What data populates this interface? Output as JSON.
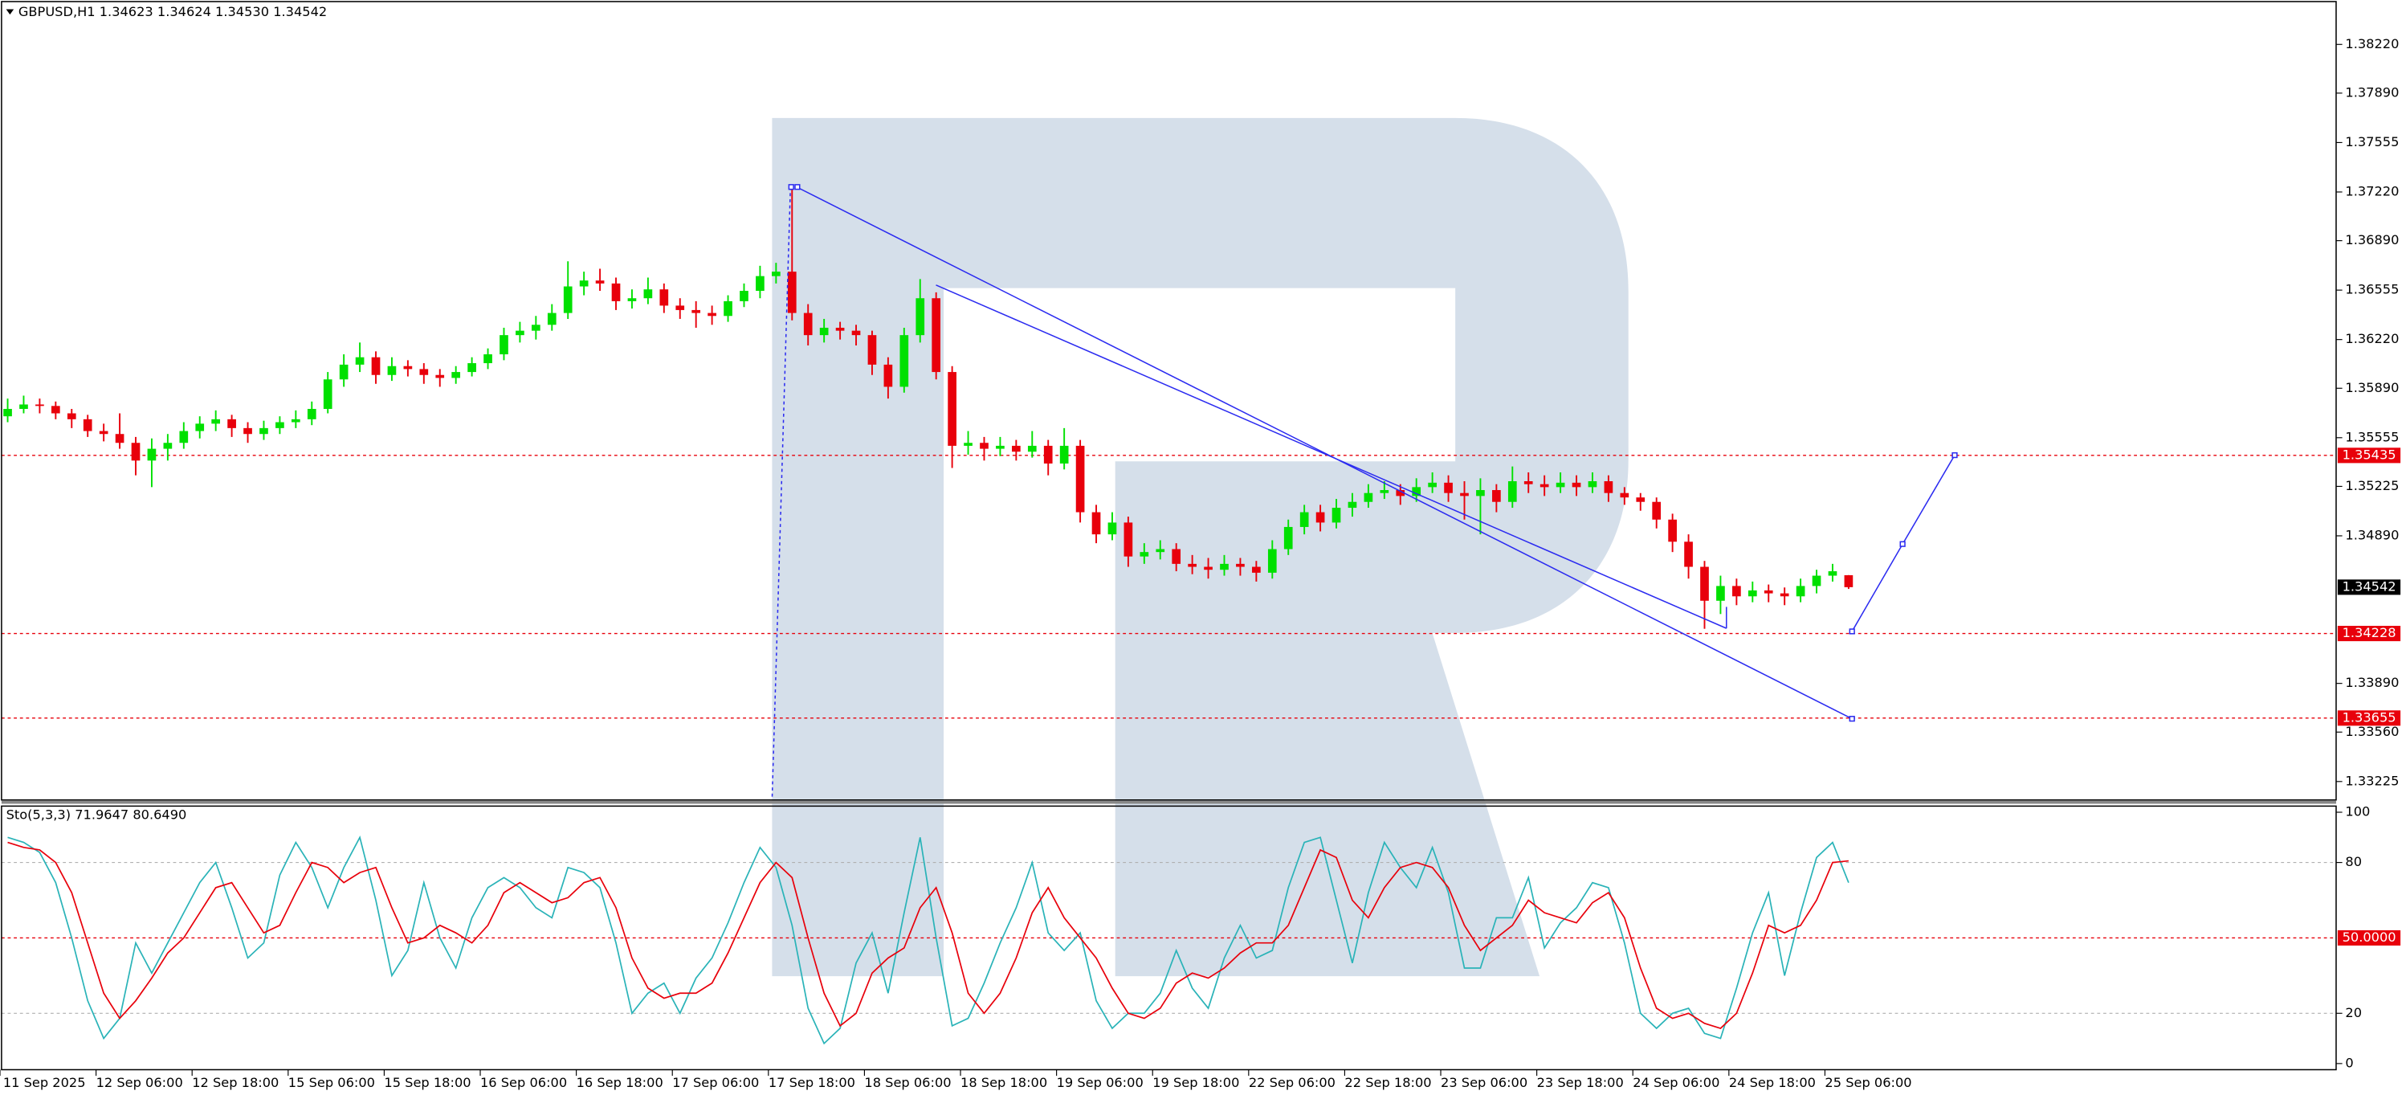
{
  "chart_data": {
    "type": "candlestick",
    "title": "GBPUSD,H1  1.34623 1.34624 1.34530 1.34542",
    "up_color": "#00e000",
    "down_color": "#e8000b",
    "categories": [
      "11 Sep 2025",
      null,
      null,
      null,
      null,
      null,
      "12 Sep 06:00",
      null,
      null,
      null,
      null,
      null,
      "12 Sep 18:00",
      null,
      null,
      null,
      null,
      null,
      "15 Sep 06:00",
      null,
      null,
      null,
      null,
      null,
      "15 Sep 18:00",
      null,
      null,
      null,
      null,
      null,
      "16 Sep 06:00",
      null,
      null,
      null,
      null,
      null,
      "16 Sep 18:00",
      null,
      null,
      null,
      null,
      null,
      "17 Sep 06:00",
      null,
      null,
      null,
      null,
      null,
      "17 Sep 18:00",
      null,
      null,
      null,
      null,
      null,
      "18 Sep 06:00",
      null,
      null,
      null,
      null,
      null,
      "18 Sep 18:00",
      null,
      null,
      null,
      null,
      null,
      "19 Sep 06:00",
      null,
      null,
      null,
      null,
      null,
      "19 Sep 18:00",
      null,
      null,
      null,
      null,
      null,
      "22 Sep 06:00",
      null,
      null,
      null,
      null,
      null,
      "22 Sep 18:00",
      null,
      null,
      null,
      null,
      null,
      "23 Sep 06:00",
      null,
      null,
      null,
      null,
      null,
      "23 Sep 18:00",
      null,
      null,
      null,
      null,
      null,
      "24 Sep 06:00",
      null,
      null,
      null,
      null,
      null,
      "24 Sep 18:00",
      null,
      null,
      null,
      null,
      null,
      "25 Sep 06:00",
      null
    ],
    "candles": [
      [
        1.357,
        1.3582,
        1.3566,
        1.3575
      ],
      [
        1.3575,
        1.3584,
        1.3572,
        1.3578
      ],
      [
        1.3578,
        1.3582,
        1.3572,
        1.3577
      ],
      [
        1.3577,
        1.358,
        1.3568,
        1.3572
      ],
      [
        1.3572,
        1.3575,
        1.3562,
        1.3568
      ],
      [
        1.3568,
        1.3571,
        1.3556,
        1.356
      ],
      [
        1.356,
        1.3565,
        1.3553,
        1.3558
      ],
      [
        1.3558,
        1.3572,
        1.3548,
        1.3552
      ],
      [
        1.3552,
        1.3556,
        1.353,
        1.354
      ],
      [
        1.354,
        1.3555,
        1.3522,
        1.3548
      ],
      [
        1.3548,
        1.3558,
        1.354,
        1.3552
      ],
      [
        1.3552,
        1.3566,
        1.3548,
        1.356
      ],
      [
        1.356,
        1.357,
        1.3555,
        1.3565
      ],
      [
        1.3565,
        1.3574,
        1.356,
        1.3568
      ],
      [
        1.3568,
        1.3571,
        1.3556,
        1.3562
      ],
      [
        1.3562,
        1.3566,
        1.3552,
        1.3558
      ],
      [
        1.3558,
        1.3567,
        1.3554,
        1.3562
      ],
      [
        1.3562,
        1.357,
        1.3558,
        1.3566
      ],
      [
        1.3566,
        1.3574,
        1.3562,
        1.3568
      ],
      [
        1.3568,
        1.358,
        1.3564,
        1.3575
      ],
      [
        1.3575,
        1.36,
        1.3572,
        1.3595
      ],
      [
        1.3595,
        1.3612,
        1.359,
        1.3605
      ],
      [
        1.3605,
        1.362,
        1.36,
        1.361
      ],
      [
        1.361,
        1.3614,
        1.3592,
        1.3598
      ],
      [
        1.3598,
        1.361,
        1.3594,
        1.3604
      ],
      [
        1.3604,
        1.3608,
        1.3597,
        1.3602
      ],
      [
        1.3602,
        1.3606,
        1.3592,
        1.3598
      ],
      [
        1.3598,
        1.3602,
        1.359,
        1.3596
      ],
      [
        1.3596,
        1.3604,
        1.3592,
        1.36
      ],
      [
        1.36,
        1.361,
        1.3597,
        1.3606
      ],
      [
        1.3606,
        1.3616,
        1.3602,
        1.3612
      ],
      [
        1.3612,
        1.363,
        1.3608,
        1.3625
      ],
      [
        1.3625,
        1.3634,
        1.362,
        1.3628
      ],
      [
        1.3628,
        1.3638,
        1.3622,
        1.3632
      ],
      [
        1.3632,
        1.3646,
        1.3628,
        1.364
      ],
      [
        1.364,
        1.3675,
        1.3636,
        1.3658
      ],
      [
        1.3658,
        1.3668,
        1.3652,
        1.3662
      ],
      [
        1.3662,
        1.367,
        1.3655,
        1.366
      ],
      [
        1.366,
        1.3664,
        1.3642,
        1.3648
      ],
      [
        1.3648,
        1.3656,
        1.3643,
        1.365
      ],
      [
        1.365,
        1.3664,
        1.3646,
        1.3656
      ],
      [
        1.3656,
        1.366,
        1.364,
        1.3645
      ],
      [
        1.3645,
        1.365,
        1.3636,
        1.3642
      ],
      [
        1.3642,
        1.3648,
        1.363,
        1.364
      ],
      [
        1.364,
        1.3645,
        1.3632,
        1.3638
      ],
      [
        1.3638,
        1.3652,
        1.3634,
        1.3648
      ],
      [
        1.3648,
        1.366,
        1.3644,
        1.3655
      ],
      [
        1.3655,
        1.3672,
        1.365,
        1.3665
      ],
      [
        1.3665,
        1.3674,
        1.366,
        1.3668
      ],
      [
        1.3668,
        1.3725,
        1.3635,
        1.364
      ],
      [
        1.364,
        1.3646,
        1.3618,
        1.3625
      ],
      [
        1.3625,
        1.3636,
        1.362,
        1.363
      ],
      [
        1.363,
        1.3634,
        1.3622,
        1.3628
      ],
      [
        1.3628,
        1.3632,
        1.3618,
        1.3625
      ],
      [
        1.3625,
        1.3628,
        1.3598,
        1.3605
      ],
      [
        1.3605,
        1.361,
        1.3582,
        1.359
      ],
      [
        1.359,
        1.363,
        1.3586,
        1.3625
      ],
      [
        1.3625,
        1.3663,
        1.362,
        1.365
      ],
      [
        1.365,
        1.3654,
        1.3595,
        1.36
      ],
      [
        1.36,
        1.3604,
        1.3535,
        1.355
      ],
      [
        1.355,
        1.356,
        1.3544,
        1.3552
      ],
      [
        1.3552,
        1.3556,
        1.354,
        1.3548
      ],
      [
        1.3548,
        1.3556,
        1.3543,
        1.355
      ],
      [
        1.355,
        1.3554,
        1.354,
        1.3546
      ],
      [
        1.3546,
        1.356,
        1.3542,
        1.355
      ],
      [
        1.355,
        1.3554,
        1.353,
        1.3538
      ],
      [
        1.3538,
        1.3562,
        1.3534,
        1.355
      ],
      [
        1.355,
        1.3554,
        1.3498,
        1.3505
      ],
      [
        1.3505,
        1.351,
        1.3484,
        1.349
      ],
      [
        1.349,
        1.3505,
        1.3486,
        1.3498
      ],
      [
        1.3498,
        1.3502,
        1.3468,
        1.3475
      ],
      [
        1.3475,
        1.3484,
        1.347,
        1.3478
      ],
      [
        1.3478,
        1.3486,
        1.3473,
        1.348
      ],
      [
        1.348,
        1.3484,
        1.3465,
        1.347
      ],
      [
        1.347,
        1.3476,
        1.3463,
        1.3468
      ],
      [
        1.3468,
        1.3474,
        1.346,
        1.3466
      ],
      [
        1.3466,
        1.3476,
        1.3462,
        1.347
      ],
      [
        1.347,
        1.3474,
        1.3462,
        1.3468
      ],
      [
        1.3468,
        1.3472,
        1.3458,
        1.3464
      ],
      [
        1.3464,
        1.3486,
        1.346,
        1.348
      ],
      [
        1.348,
        1.35,
        1.3476,
        1.3495
      ],
      [
        1.3495,
        1.351,
        1.349,
        1.3505
      ],
      [
        1.3505,
        1.351,
        1.3492,
        1.3498
      ],
      [
        1.3498,
        1.3514,
        1.3494,
        1.3508
      ],
      [
        1.3508,
        1.3518,
        1.3502,
        1.3512
      ],
      [
        1.3512,
        1.3524,
        1.3508,
        1.3518
      ],
      [
        1.3518,
        1.3526,
        1.3514,
        1.352
      ],
      [
        1.352,
        1.3524,
        1.351,
        1.3516
      ],
      [
        1.3516,
        1.3528,
        1.3512,
        1.3522
      ],
      [
        1.3522,
        1.3532,
        1.3518,
        1.3525
      ],
      [
        1.3525,
        1.353,
        1.3512,
        1.3518
      ],
      [
        1.3518,
        1.3526,
        1.35,
        1.3516
      ],
      [
        1.3516,
        1.3528,
        1.349,
        1.352
      ],
      [
        1.352,
        1.3524,
        1.3505,
        1.3512
      ],
      [
        1.3512,
        1.3536,
        1.3508,
        1.3526
      ],
      [
        1.3526,
        1.3532,
        1.3518,
        1.3524
      ],
      [
        1.3524,
        1.353,
        1.3516,
        1.3522
      ],
      [
        1.3522,
        1.3532,
        1.3518,
        1.3525
      ],
      [
        1.3525,
        1.353,
        1.3516,
        1.3522
      ],
      [
        1.3522,
        1.3532,
        1.3518,
        1.3526
      ],
      [
        1.3526,
        1.353,
        1.3512,
        1.3518
      ],
      [
        1.3518,
        1.3522,
        1.351,
        1.3515
      ],
      [
        1.3515,
        1.3518,
        1.3506,
        1.3512
      ],
      [
        1.3512,
        1.3515,
        1.3494,
        1.35
      ],
      [
        1.35,
        1.3504,
        1.3478,
        1.3485
      ],
      [
        1.3485,
        1.349,
        1.346,
        1.3468
      ],
      [
        1.3468,
        1.3472,
        1.3426,
        1.3445
      ],
      [
        1.3445,
        1.3462,
        1.3436,
        1.3455
      ],
      [
        1.3455,
        1.346,
        1.3442,
        1.3448
      ],
      [
        1.3448,
        1.3458,
        1.3444,
        1.3452
      ],
      [
        1.3452,
        1.3456,
        1.3444,
        1.345
      ],
      [
        1.345,
        1.3454,
        1.3442,
        1.3448
      ],
      [
        1.3448,
        1.346,
        1.3444,
        1.3455
      ],
      [
        1.3455,
        1.3466,
        1.345,
        1.3462
      ],
      [
        1.3462,
        1.347,
        1.3458,
        1.3465
      ],
      [
        1.34623,
        1.34624,
        1.3453,
        1.34542
      ]
    ],
    "ylim": [
      1.331,
      1.385
    ],
    "yticks": [
      {
        "value": 1.3822,
        "label": "1.38220"
      },
      {
        "value": 1.3789,
        "label": "1.37890"
      },
      {
        "value": 1.37555,
        "label": "1.37555"
      },
      {
        "value": 1.3722,
        "label": "1.37220"
      },
      {
        "value": 1.3689,
        "label": "1.36890"
      },
      {
        "value": 1.36555,
        "label": "1.36555"
      },
      {
        "value": 1.3622,
        "label": "1.36220"
      },
      {
        "value": 1.3589,
        "label": "1.35890"
      },
      {
        "value": 1.35555,
        "label": "1.35555"
      },
      {
        "value": 1.35225,
        "label": "1.35225"
      },
      {
        "value": 1.3489,
        "label": "1.34890"
      },
      {
        "value": 1.3389,
        "label": "1.33890"
      },
      {
        "value": 1.3356,
        "label": "1.33560"
      },
      {
        "value": 1.33225,
        "label": "1.33225"
      }
    ],
    "levels": [
      {
        "value": 1.35435,
        "label": "1.35435"
      },
      {
        "value": 1.34228,
        "label": "1.34228"
      },
      {
        "value": 1.33655,
        "label": "1.33655"
      }
    ],
    "level_color": "#e8000b",
    "current_price": {
      "value": 1.34542,
      "label": "1.34542"
    },
    "indicator": {
      "title": "Sto(5,3,3) 71.9647 80.6490",
      "ylim": [
        0,
        100
      ],
      "yticks": [
        100,
        80,
        20,
        0
      ],
      "levels": [
        {
          "value": 50,
          "label": "50.0000"
        }
      ],
      "series": [
        {
          "color": "#2ab3b8",
          "values": [
            90,
            88,
            84,
            72,
            50,
            25,
            10,
            18,
            48,
            36,
            48,
            60,
            72,
            80,
            62,
            42,
            48,
            75,
            88,
            78,
            62,
            78,
            90,
            65,
            35,
            45,
            72,
            50,
            38,
            58,
            70,
            74,
            70,
            62,
            58,
            78,
            76,
            70,
            48,
            20,
            28,
            32,
            20,
            34,
            42,
            56,
            72,
            86,
            78,
            55,
            22,
            8,
            14,
            40,
            52,
            28,
            60,
            90,
            50,
            15,
            18,
            32,
            48,
            62,
            80,
            52,
            45,
            52,
            25,
            14,
            20,
            20,
            28,
            45,
            30,
            22,
            42,
            55,
            42,
            45,
            70,
            88,
            90,
            65,
            40,
            68,
            88,
            78,
            70,
            86,
            68,
            38,
            38,
            58,
            58,
            74,
            46,
            56,
            62,
            72,
            70,
            48,
            20,
            14,
            20,
            22,
            12,
            10,
            30,
            52,
            68,
            35,
            60,
            82,
            88,
            71.9647
          ]
        },
        {
          "color": "#e8000b",
          "values": [
            88,
            86,
            85,
            80,
            68,
            48,
            28,
            18,
            25,
            34,
            44,
            50,
            60,
            70,
            72,
            62,
            52,
            55,
            68,
            80,
            78,
            72,
            76,
            78,
            62,
            48,
            50,
            55,
            52,
            48,
            55,
            68,
            72,
            68,
            64,
            66,
            72,
            74,
            62,
            42,
            30,
            26,
            28,
            28,
            32,
            44,
            58,
            72,
            80,
            74,
            50,
            28,
            15,
            20,
            36,
            42,
            46,
            62,
            70,
            52,
            28,
            20,
            28,
            42,
            60,
            70,
            58,
            50,
            42,
            30,
            20,
            18,
            22,
            32,
            36,
            34,
            38,
            44,
            48,
            48,
            55,
            70,
            85,
            82,
            65,
            58,
            70,
            78,
            80,
            78,
            70,
            55,
            45,
            50,
            55,
            65,
            60,
            58,
            56,
            64,
            68,
            58,
            38,
            22,
            18,
            20,
            16,
            14,
            20,
            36,
            55,
            52,
            55,
            65,
            80,
            80.649
          ]
        }
      ]
    }
  }
}
